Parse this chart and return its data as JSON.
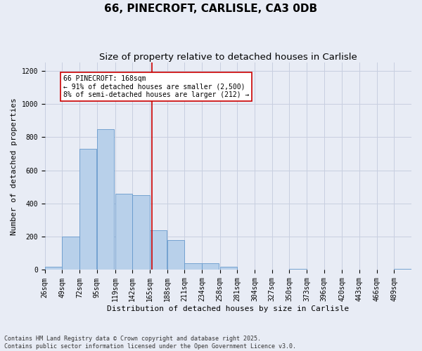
{
  "title1": "66, PINECROFT, CARLISLE, CA3 0DB",
  "title2": "Size of property relative to detached houses in Carlisle",
  "xlabel": "Distribution of detached houses by size in Carlisle",
  "ylabel": "Number of detached properties",
  "bins": [
    26,
    49,
    72,
    95,
    119,
    142,
    165,
    188,
    211,
    234,
    258,
    281,
    304,
    327,
    350,
    373,
    396,
    420,
    443,
    466,
    489
  ],
  "values": [
    20,
    200,
    730,
    850,
    460,
    450,
    240,
    180,
    40,
    40,
    20,
    0,
    0,
    0,
    5,
    0,
    0,
    0,
    0,
    0,
    5
  ],
  "bar_color": "#b8d0ea",
  "bar_edge_color": "#6699cc",
  "grid_color": "#c8cfe0",
  "background_color": "#e8ecf5",
  "vline_x": 168,
  "vline_color": "#cc0000",
  "annotation_line1": "66 PINECROFT: 168sqm",
  "annotation_line2": "← 91% of detached houses are smaller (2,500)",
  "annotation_line3": "8% of semi-detached houses are larger (212) →",
  "annotation_box_color": "white",
  "annotation_border_color": "#cc0000",
  "ylim": [
    0,
    1250
  ],
  "yticks": [
    0,
    200,
    400,
    600,
    800,
    1000,
    1200
  ],
  "footnote": "Contains HM Land Registry data © Crown copyright and database right 2025.\nContains public sector information licensed under the Open Government Licence v3.0.",
  "title1_fontsize": 11,
  "title2_fontsize": 9.5,
  "axis_label_fontsize": 8,
  "tick_fontsize": 7,
  "annotation_fontsize": 7,
  "footnote_fontsize": 6
}
